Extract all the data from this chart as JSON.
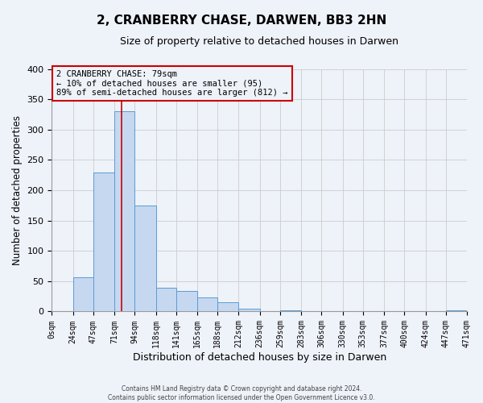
{
  "title": "2, CRANBERRY CHASE, DARWEN, BB3 2HN",
  "subtitle": "Size of property relative to detached houses in Darwen",
  "xlabel": "Distribution of detached houses by size in Darwen",
  "ylabel": "Number of detached properties",
  "bin_edges": [
    0,
    24,
    47,
    71,
    94,
    118,
    141,
    165,
    188,
    212,
    236,
    259,
    283,
    306,
    330,
    353,
    377,
    400,
    424,
    447,
    471
  ],
  "bin_counts": [
    0,
    57,
    229,
    330,
    175,
    39,
    34,
    23,
    15,
    5,
    0,
    2,
    0,
    0,
    0,
    0,
    0,
    0,
    0,
    2
  ],
  "bar_color": "#c5d8f0",
  "bar_edge_color": "#5b9bd5",
  "property_value": 79,
  "vline_color": "#cc0000",
  "annotation_line1": "2 CRANBERRY CHASE: 79sqm",
  "annotation_line2": "← 10% of detached houses are smaller (95)",
  "annotation_line3": "89% of semi-detached houses are larger (812) →",
  "annotation_box_edgecolor": "#cc0000",
  "grid_color": "#cccccc",
  "background_color": "#eef2f9",
  "footer_line1": "Contains HM Land Registry data © Crown copyright and database right 2024.",
  "footer_line2": "Contains public sector information licensed under the Open Government Licence v3.0.",
  "ylim": [
    0,
    400
  ],
  "xlim": [
    0,
    471
  ],
  "yticks": [
    0,
    50,
    100,
    150,
    200,
    250,
    300,
    350,
    400
  ]
}
